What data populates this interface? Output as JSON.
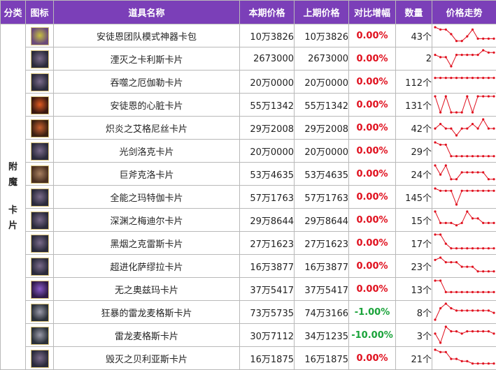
{
  "header": {
    "category": "分类",
    "icon": "图标",
    "name": "道具名称",
    "current_price": "本期价格",
    "previous_price": "上期价格",
    "change": "对比增幅",
    "quantity": "数量",
    "trend": "价格走势"
  },
  "category_label": [
    "附",
    "魔",
    "卡",
    "片"
  ],
  "colors": {
    "header_bg": "#7b3fb8",
    "increase_zero": "#e0101e",
    "decrease": "#1aa33a",
    "trend_line": "#e0101e"
  },
  "rows": [
    {
      "icon": "cyan-weapon-icon",
      "name": "安徒恩团队模式神器卡包",
      "current": "10万3826",
      "previous": "10万3826",
      "change": "0.00%",
      "quantity": "43个",
      "trend": [
        7,
        6,
        6,
        4,
        1,
        1,
        3,
        6,
        2,
        2,
        2,
        2
      ]
    },
    {
      "icon": "dark-card-icon",
      "name": "湮灭之卡利斯卡片",
      "current": "2673000",
      "previous": "2673000",
      "change": "0.00%",
      "quantity": "2",
      "trend": [
        5,
        4,
        4,
        0,
        5,
        5,
        5,
        5,
        5,
        7,
        6,
        6
      ]
    },
    {
      "icon": "dark-card-icon",
      "name": "吞噬之厄伽勒卡片",
      "current": "20万0000",
      "previous": "20万0000",
      "change": "0.00%",
      "quantity": "112个",
      "trend": [
        5,
        5,
        5,
        5,
        5,
        5,
        5,
        5,
        5,
        5,
        5,
        5
      ]
    },
    {
      "icon": "fire-heart-icon",
      "name": "安徒恩的心脏卡片",
      "current": "55万1342",
      "previous": "55万1342",
      "change": "0.00%",
      "quantity": "131个",
      "trend": [
        7,
        0,
        7,
        0,
        0,
        0,
        7,
        0,
        7,
        7,
        7,
        7
      ]
    },
    {
      "icon": "fire-card-icon",
      "name": "炽炎之艾格尼丝卡片",
      "current": "29万2008",
      "previous": "29万2008",
      "change": "0.00%",
      "quantity": "42个",
      "trend": [
        3,
        5,
        3,
        3,
        0,
        3,
        3,
        5,
        3,
        7,
        3,
        3
      ]
    },
    {
      "icon": "dark-card-icon",
      "name": "光剑洛克卡片",
      "current": "20万0000",
      "previous": "20万0000",
      "change": "0.00%",
      "quantity": "29个",
      "trend": [
        7,
        6,
        6,
        1,
        1,
        1,
        1,
        1,
        1,
        1,
        1,
        1
      ]
    },
    {
      "icon": "beast-card-icon",
      "name": "巨斧克洛卡片",
      "current": "53万4635",
      "previous": "53万4635",
      "change": "0.00%",
      "quantity": "24个",
      "trend": [
        7,
        3,
        7,
        1,
        1,
        4,
        4,
        4,
        4,
        4,
        1,
        1
      ]
    },
    {
      "icon": "dark-card-icon",
      "name": "全能之玛特伽卡片",
      "current": "57万1763",
      "previous": "57万1763",
      "change": "0.00%",
      "quantity": "145个",
      "trend": [
        7,
        6,
        6,
        6,
        0,
        6,
        6,
        6,
        6,
        6,
        6,
        6
      ]
    },
    {
      "icon": "dark-card-icon",
      "name": "深渊之梅迪尔卡片",
      "current": "29万8644",
      "previous": "29万8644",
      "change": "0.00%",
      "quantity": "15个",
      "trend": [
        7,
        2,
        2,
        2,
        1,
        2,
        7,
        4,
        4,
        2,
        2,
        2
      ]
    },
    {
      "icon": "dark-card-icon",
      "name": "黑烟之克雷斯卡片",
      "current": "27万1623",
      "previous": "27万1623",
      "change": "0.00%",
      "quantity": "17个",
      "trend": [
        7,
        7,
        3,
        1,
        1,
        1,
        1,
        1,
        1,
        1,
        1,
        1
      ]
    },
    {
      "icon": "dark-card-icon",
      "name": "超进化萨缪拉卡片",
      "current": "16万3877",
      "previous": "16万3877",
      "change": "0.00%",
      "quantity": "23个",
      "trend": [
        6,
        7,
        5,
        5,
        5,
        3,
        3,
        3,
        1,
        1,
        1,
        1
      ]
    },
    {
      "icon": "purple-card-icon",
      "name": "无之奥兹玛卡片",
      "current": "37万5417",
      "previous": "37万5417",
      "change": "0.00%",
      "quantity": "13个",
      "trend": [
        7,
        7,
        2,
        2,
        2,
        2,
        2,
        2,
        2,
        2,
        2,
        2
      ]
    },
    {
      "icon": "dragon-card-icon",
      "name": "狂暴的雷龙麦格斯卡片",
      "current": "73万5735",
      "previous": "74万3166",
      "change": "-1.00%",
      "quantity": "8个",
      "trend": [
        0,
        5,
        7,
        5,
        4,
        4,
        4,
        4,
        4,
        4,
        4,
        3
      ]
    },
    {
      "icon": "dragon-card-icon",
      "name": "雷龙麦格斯卡片",
      "current": "30万7112",
      "previous": "34万1235",
      "change": "-10.00%",
      "quantity": "3个",
      "trend": [
        4,
        0,
        7,
        5,
        5,
        4,
        5,
        5,
        5,
        5,
        5,
        4
      ]
    },
    {
      "icon": "dark-card-icon",
      "name": "毁灭之贝利亚斯卡片",
      "current": "16万1875",
      "previous": "16万1875",
      "change": "0.00%",
      "quantity": "21个",
      "trend": [
        7,
        6,
        6,
        3,
        3,
        2,
        2,
        1,
        1,
        1,
        1,
        1
      ]
    }
  ]
}
